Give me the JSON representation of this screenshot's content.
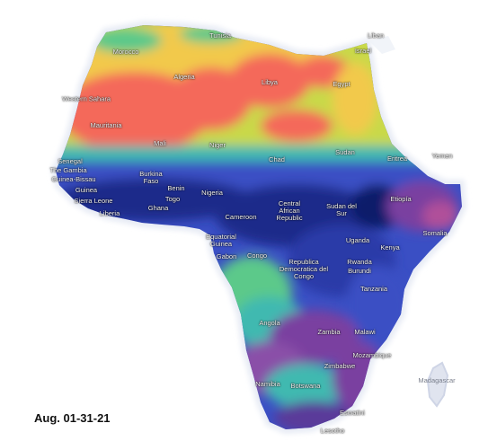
{
  "caption": "Aug. 01-31-21",
  "labels": {
    "tunisia": "Tunisia",
    "lebanon": "Liban",
    "israel": "Israel",
    "morocco": "Morocco",
    "algeria": "Algeria",
    "libya": "Libya",
    "egypt": "Egypt",
    "western_sahara": "Western Sahara",
    "mauritania": "Mauritania",
    "mali": "Mali",
    "niger": "Niger",
    "chad": "Chad",
    "sudan": "Sudan",
    "eritrea": "Eritrea",
    "yemen": "Yemen",
    "senegal": "Senegal",
    "gambia": "The Gambia",
    "guinea_bissau": "Guinea-Bissau",
    "guinea": "Guinea",
    "burkina_faso": "Burkina Faso",
    "benin": "Benin",
    "nigeria": "Nigeria",
    "sierra_leone": "Sierra Leone",
    "liberia": "Liberia",
    "ghana": "Ghana",
    "togo": "Togo",
    "cameroon": "Cameroon",
    "central_african_republic": "Central African Republic",
    "south_sudan": "Sudan del Sur",
    "ethiopia": "Etiopía",
    "somalia": "Somalia",
    "equatorial_guinea": "Equatorial Guinea",
    "gabon": "Gabon",
    "congo": "Congo",
    "uganda": "Uganda",
    "kenya": "Kenya",
    "drc": "Republica Democratica del Congo",
    "rwanda": "Rwanda",
    "burundi": "Burundi",
    "tanzania": "Tanzania",
    "angola": "Angola",
    "zambia": "Zambia",
    "malawi": "Malawi",
    "mozambique": "Mozambique",
    "zimbabwe": "Zimbabwe",
    "namibia": "Namibia",
    "botswana": "Botswana",
    "madagascar": "Madagascar",
    "eswatini": "Eswatini",
    "lesotho": "Lesotho"
  },
  "colors": {
    "hot": "#f4695a",
    "warm": "#f2c94c",
    "mild": "#c9d94a",
    "green": "#5cc98a",
    "teal": "#3fb9b0",
    "blue": "#3a4fc4",
    "deep": "#1a2a8a",
    "purple": "#7a3fa0",
    "magenta": "#b0509a",
    "land_edge": "#e8ecf5"
  }
}
